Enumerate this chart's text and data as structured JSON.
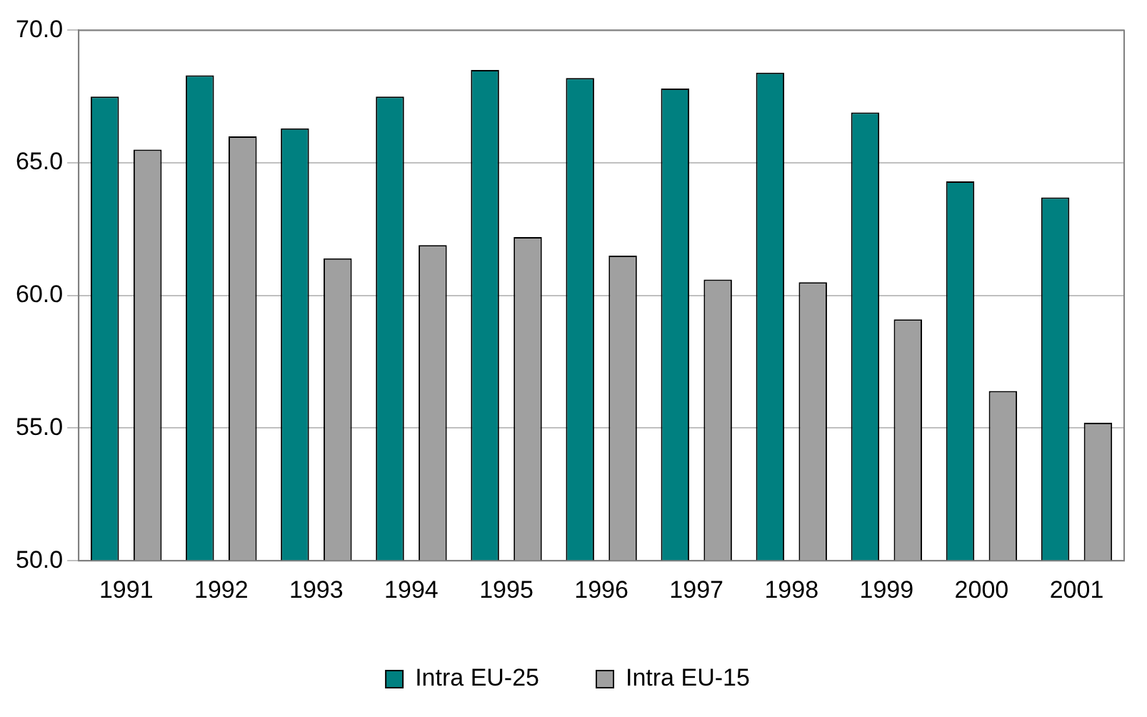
{
  "chart_data": {
    "type": "bar",
    "categories": [
      "1991",
      "1992",
      "1993",
      "1994",
      "1995",
      "1996",
      "1997",
      "1998",
      "1999",
      "2000",
      "2001"
    ],
    "series": [
      {
        "name": "Intra EU-25",
        "color": "#008080",
        "values": [
          67.5,
          68.3,
          66.3,
          67.5,
          68.5,
          68.2,
          67.8,
          68.4,
          66.9,
          64.3,
          63.7
        ]
      },
      {
        "name": "Intra EU-15",
        "color": "#a0a0a0",
        "values": [
          65.5,
          66.0,
          61.4,
          61.9,
          62.2,
          61.5,
          60.6,
          60.5,
          59.1,
          56.4,
          55.2
        ]
      }
    ],
    "ylim": [
      50,
      70
    ],
    "yticks": [
      {
        "value": 50,
        "label": "50.0"
      },
      {
        "value": 55,
        "label": "55.0"
      },
      {
        "value": 60,
        "label": "60.0"
      },
      {
        "value": 65,
        "label": "65.0"
      },
      {
        "value": 70,
        "label": "70.0"
      }
    ],
    "grid": "y",
    "legend": "bottom"
  }
}
